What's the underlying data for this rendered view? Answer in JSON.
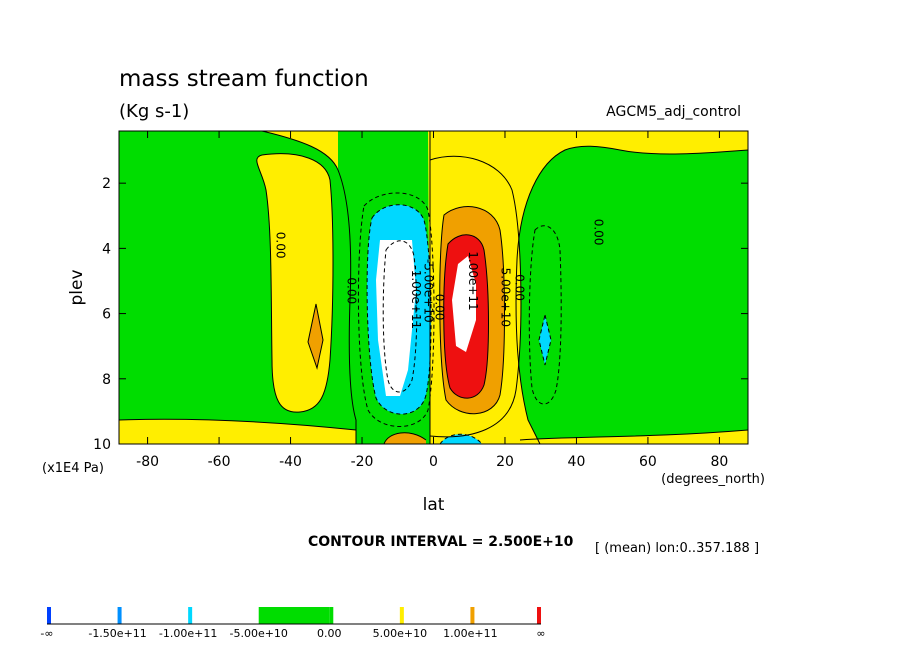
{
  "page": {
    "title": "mass stream function",
    "units": "(Kg s-1)",
    "dataset": "AGCM5_adj_control",
    "contour_interval": "CONTOUR INTERVAL = 2.500E+10",
    "region": "[ (mean) lon:0..357.188 ]"
  },
  "chart_data": {
    "type": "heatmap",
    "title": "mass stream function",
    "subtitle": "(Kg s-1)",
    "xlabel": "lat",
    "x_units": "(degrees_north)",
    "ylabel": "plev",
    "y_units": "(x1E4 Pa)",
    "xlim": [
      -88,
      88
    ],
    "ylim": [
      10,
      0.4
    ],
    "x_ticks": [
      -80,
      -60,
      -40,
      -20,
      0,
      20,
      40,
      60,
      80
    ],
    "y_ticks": [
      2,
      4,
      6,
      8,
      10
    ],
    "contour_labels": [
      {
        "text": "0.00",
        "x": -44,
        "y": 3.9
      },
      {
        "text": "0.00",
        "x": -24,
        "y": 5.3
      },
      {
        "text": "-5.00e+10",
        "x": -2.5,
        "y": 5.3
      },
      {
        "text": "-1.00e+11",
        "x": -6,
        "y": 5.5
      },
      {
        "text": "0.00",
        "x": 0.5,
        "y": 5.8
      },
      {
        "text": "1.00e+11",
        "x": 10,
        "y": 5.0
      },
      {
        "text": "5.00e+10",
        "x": 19,
        "y": 5.5
      },
      {
        "text": "0.00",
        "x": 23,
        "y": 5.2
      },
      {
        "text": "0.00",
        "x": 45,
        "y": 3.5
      }
    ],
    "legend": {
      "colors": [
        "#0040ff",
        "#0090ff",
        "#00d8ff",
        "#ffffff",
        "#00dd00",
        "#ffee00",
        "#f0a000",
        "#ee1010"
      ],
      "labels": [
        "-∞",
        "-1.50e+11",
        "-1.00e+11",
        "-5.00e+10",
        "0.00",
        "5.00e+10",
        "1.00e+11",
        "∞"
      ]
    }
  }
}
